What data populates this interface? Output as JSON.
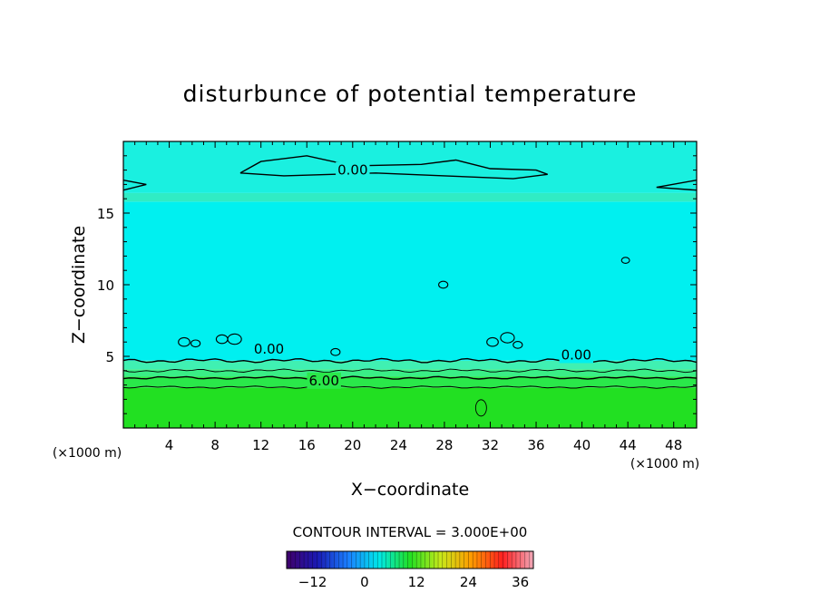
{
  "chart_data": {
    "type": "heatmap",
    "title": "disturbunce of potential temperature",
    "xlabel": "X−coordinate",
    "ylabel": "Z−coordinate",
    "x_unit": "(×1000 m)",
    "y_unit": "(×1000 m)",
    "xlim": [
      0,
      50
    ],
    "ylim": [
      0,
      20
    ],
    "x_ticks": [
      4,
      8,
      12,
      16,
      20,
      24,
      28,
      32,
      36,
      40,
      44,
      48
    ],
    "y_ticks": [
      5,
      10,
      15
    ],
    "contour_interval_text": "CONTOUR INTERVAL = 3.000E+00",
    "contour_labels": [
      {
        "text": "0.00",
        "x": 20,
        "z": 18.0
      },
      {
        "text": "0.00",
        "x": 12.7,
        "z": 5.5
      },
      {
        "text": "0.00",
        "x": 39.5,
        "z": 5.1
      },
      {
        "text": "6.00",
        "x": 17.5,
        "z": 3.3
      }
    ],
    "field_bands": [
      {
        "z0": 0.0,
        "z1": 2.8,
        "value": 9,
        "color": "#22e022"
      },
      {
        "z0": 2.8,
        "z1": 3.6,
        "value": 6,
        "color": "#2ae84a"
      },
      {
        "z0": 3.6,
        "z1": 4.1,
        "value": 4,
        "color": "#3aee86"
      },
      {
        "z0": 4.1,
        "z1": 4.7,
        "value": 2,
        "color": "#40f0b2"
      },
      {
        "z0": 4.7,
        "z1": 15.8,
        "value": 0,
        "color": "#00f0f0"
      },
      {
        "z0": 15.8,
        "z1": 16.4,
        "value": 1,
        "color": "#30ecc4"
      },
      {
        "z0": 16.4,
        "z1": 20.0,
        "value": 0,
        "color": "#1af0e0"
      }
    ],
    "colorbar": {
      "min": -18,
      "max": 39,
      "tick_values": [
        -12,
        0,
        12,
        24,
        36
      ],
      "tick_labels": [
        "−12",
        "0",
        "12",
        "24",
        "36"
      ],
      "stops": [
        "#40006a",
        "#1a1ab4",
        "#1a80ff",
        "#00e8e8",
        "#22e022",
        "#c8e81a",
        "#ff9a00",
        "#ff2020",
        "#f0a8b8"
      ]
    },
    "grid": false
  }
}
